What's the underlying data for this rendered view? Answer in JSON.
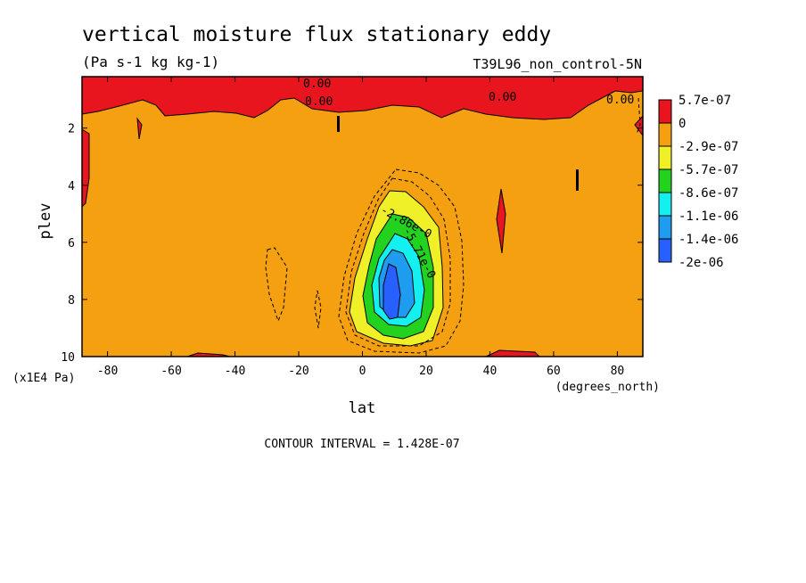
{
  "chart_data": {
    "type": "heatmap",
    "title": "vertical moisture flux stationary eddy",
    "units": "(Pa s-1 kg kg-1)",
    "run_label": "T39L96_non_control-5N",
    "xlabel": "lat",
    "x_units": "(degrees_north)",
    "ylabel": "plev",
    "y_units": "(x1E4 Pa)",
    "xlim": [
      -88,
      88
    ],
    "ylim": [
      0.2,
      10
    ],
    "y_inverted": true,
    "x_ticks": [
      -80,
      -60,
      -40,
      -20,
      0,
      20,
      40,
      60,
      80
    ],
    "y_ticks": [
      2,
      4,
      6,
      8,
      10
    ],
    "contour_interval_text": "CONTOUR INTERVAL = 1.428E-07",
    "contour_labels": [
      "0.00",
      "0.00",
      "0.00",
      "0.00",
      "-2.86e-0",
      "-5.71e-0"
    ],
    "legend": [
      {
        "label": "5.7e-07",
        "color": "#e8141e"
      },
      {
        "label": "0",
        "color": "#f5a010"
      },
      {
        "label": "-2.9e-07",
        "color": "#f0f028"
      },
      {
        "label": "-5.7e-07",
        "color": "#23d21e"
      },
      {
        "label": "-8.6e-07",
        "color": "#14f0f0"
      },
      {
        "label": "-1.1e-06",
        "color": "#1e9cf0"
      },
      {
        "label": "-1.4e-06",
        "color": "#2860ff"
      },
      {
        "label": "-2e-06",
        "color": null
      }
    ],
    "minimum_region": {
      "lat_range": [
        5,
        15
      ],
      "plev_range": [
        6.5,
        9
      ],
      "value_level": "-1.4e-06"
    }
  }
}
